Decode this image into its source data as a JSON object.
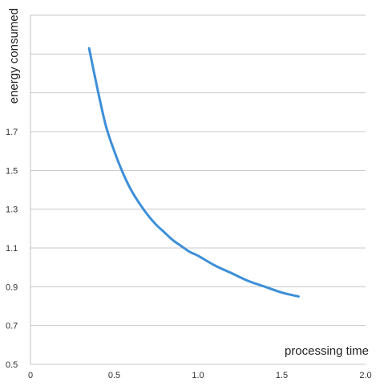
{
  "chart_data": {
    "type": "line",
    "xlabel": "processing time",
    "ylabel": "energy consumed",
    "xlim": [
      0,
      2.0
    ],
    "ylim": [
      0.5,
      2.3
    ],
    "x_ticks": [
      0,
      0.5,
      1.0,
      1.5,
      2.0
    ],
    "x_tick_labels": [
      "0",
      "0.5",
      "1.0",
      "1.5",
      "2.0"
    ],
    "y_ticks": [
      0.5,
      0.7,
      0.9,
      1.1,
      1.3,
      1.5,
      1.7
    ],
    "y_tick_labels": [
      "0.5",
      "0.7",
      "0.9",
      "1.1",
      "1.3",
      "1.5",
      "1.7"
    ],
    "y_gridlines": [
      0.5,
      0.7,
      0.9,
      1.1,
      1.3,
      1.5,
      1.7,
      1.9,
      2.1,
      2.3
    ],
    "grid": "horizontal",
    "series": [
      {
        "color": "#3d8fd8",
        "x": [
          0.35,
          0.4,
          0.45,
          0.5,
          0.55,
          0.6,
          0.65,
          0.7,
          0.75,
          0.8,
          0.85,
          0.9,
          0.95,
          1.0,
          1.1,
          1.2,
          1.3,
          1.4,
          1.5,
          1.6
        ],
        "y": [
          2.13,
          1.92,
          1.73,
          1.6,
          1.49,
          1.4,
          1.33,
          1.27,
          1.22,
          1.18,
          1.14,
          1.11,
          1.08,
          1.06,
          1.01,
          0.97,
          0.93,
          0.9,
          0.87,
          0.85
        ]
      }
    ]
  }
}
